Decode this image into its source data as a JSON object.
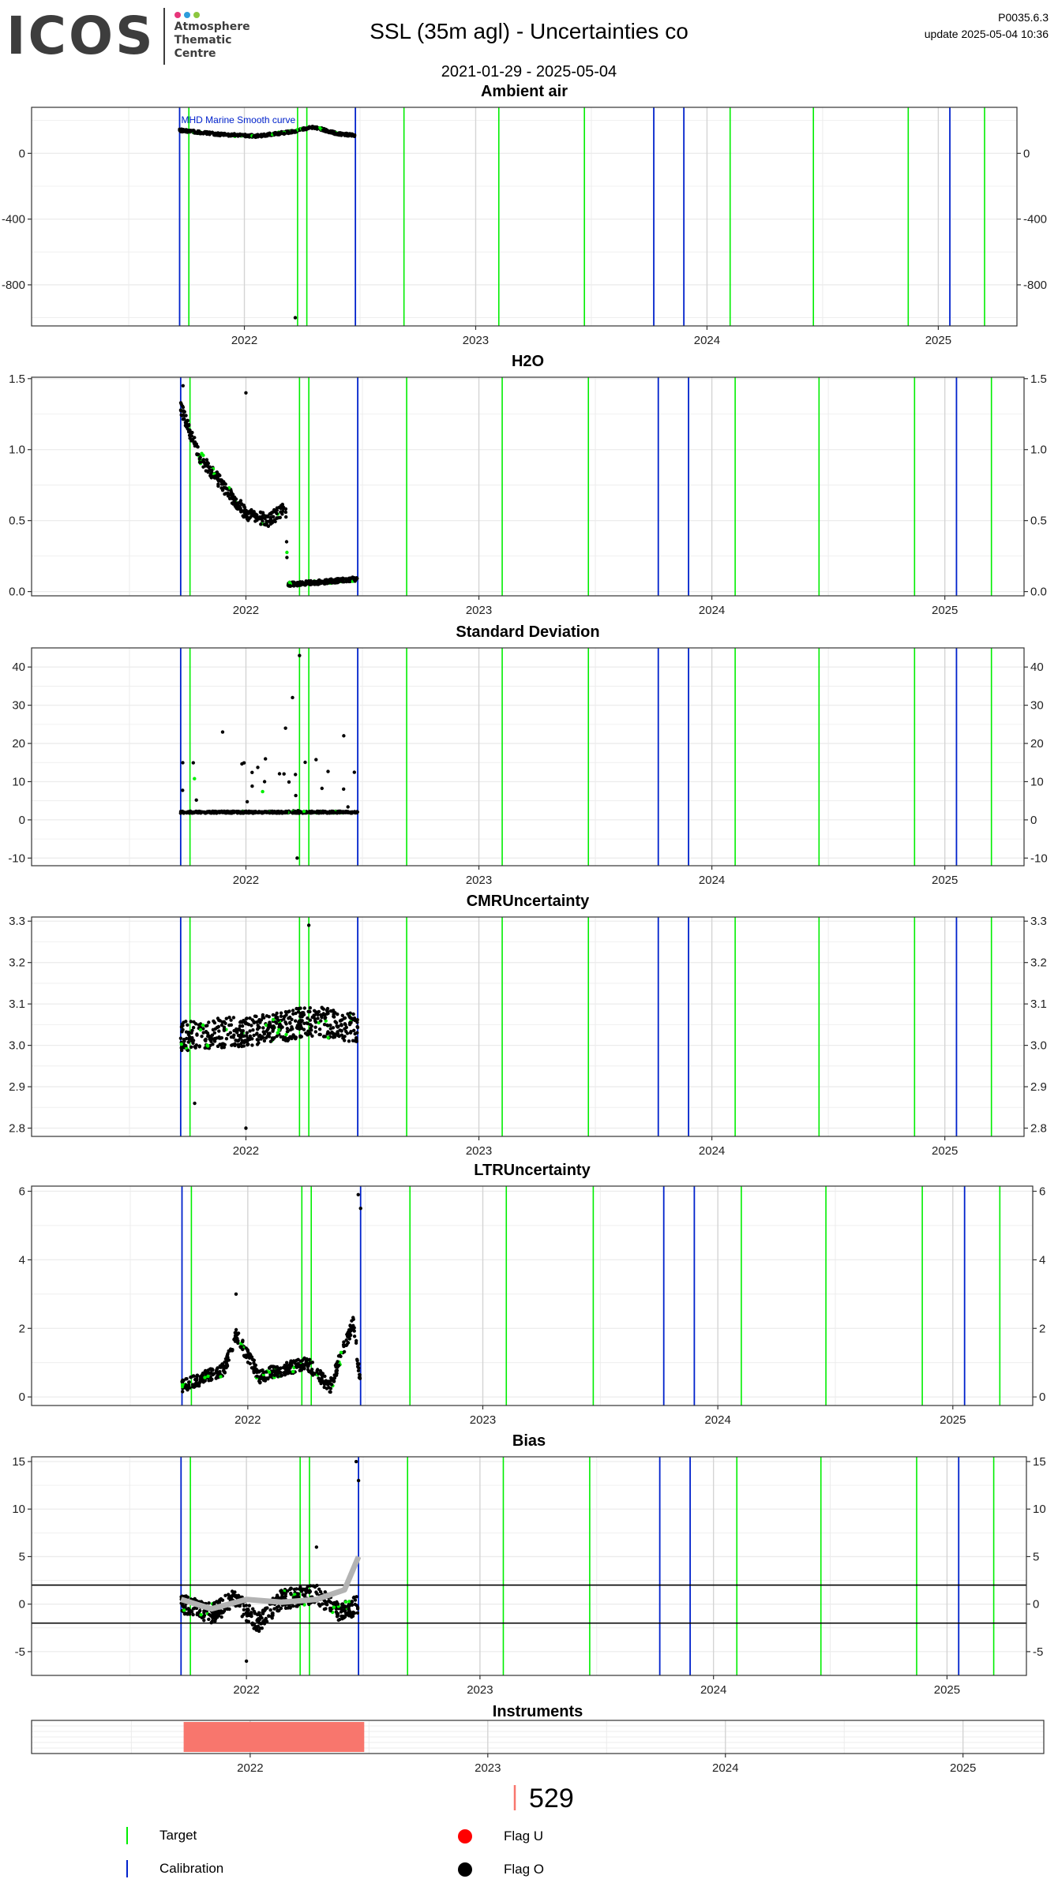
{
  "header": {
    "logo_word": "ICOS",
    "logo_lines": [
      "Atmosphere",
      "Thematic",
      "Centre"
    ],
    "title": "SSL  (35m agl) - Uncertainties co",
    "date_range": "2021-01-29 - 2025-05-04",
    "version": "P0035.6.3",
    "update": "update  2025-05-04 10:36"
  },
  "colors": {
    "target": "#00ee00",
    "calibration": "#0022cc",
    "flag_u": "#ff0000",
    "flag_o": "#000000",
    "instrument": "#f8766d",
    "gridline": "#d9d9d9",
    "smooth_curve": "#b3b3b3"
  },
  "legend": {
    "target": "Target",
    "calibration": "Calibration",
    "flag_u": "Flag U",
    "flag_o": "Flag O"
  },
  "instrument_label": "529",
  "chart_data": [
    {
      "type": "scatter",
      "title": "Ambient air",
      "ylim": [
        -1050,
        280
      ],
      "yticks": [
        0,
        -400,
        -800
      ],
      "xticks": [
        "2022",
        "2023",
        "2024",
        "2025"
      ],
      "xlim": [
        2021.08,
        2025.34
      ],
      "annotation": "MHD Marine Smooth curve",
      "data_range": [
        2021.72,
        2022.48
      ],
      "level_points": [
        [
          2021.72,
          140
        ],
        [
          2021.9,
          115
        ],
        [
          2022.05,
          105
        ],
        [
          2022.2,
          130
        ],
        [
          2022.3,
          160
        ],
        [
          2022.4,
          120
        ],
        [
          2022.48,
          110
        ]
      ],
      "outliers": [
        [
          2022.22,
          -1000
        ]
      ],
      "target_dates": [
        2021.76,
        2022.23,
        2022.27,
        2022.69,
        2023.1,
        2023.47,
        2024.1,
        2024.46,
        2024.87,
        2025.2
      ],
      "calibration_dates": [
        2021.72,
        2022.48,
        2023.77,
        2023.9,
        2025.05
      ],
      "grid": true
    },
    {
      "type": "scatter",
      "title": "H2O",
      "ylim": [
        -0.03,
        1.51
      ],
      "yticks": [
        0.0,
        0.5,
        1.0,
        1.5
      ],
      "xticks": [
        "2022",
        "2023",
        "2024",
        "2025"
      ],
      "xlim": [
        2021.08,
        2025.34
      ],
      "data_range": [
        2021.72,
        2022.48
      ],
      "level_points": [
        [
          2021.72,
          1.3
        ],
        [
          2021.8,
          0.95
        ],
        [
          2021.9,
          0.75
        ],
        [
          2022.0,
          0.55
        ],
        [
          2022.1,
          0.5
        ],
        [
          2022.17,
          0.6
        ],
        [
          2022.18,
          0.05
        ],
        [
          2022.35,
          0.07
        ],
        [
          2022.48,
          0.09
        ]
      ],
      "outliers": [
        [
          2021.73,
          1.45
        ],
        [
          2022.0,
          1.4
        ]
      ],
      "target_dates": [
        2021.76,
        2022.23,
        2022.27,
        2022.69,
        2023.1,
        2023.47,
        2024.1,
        2024.46,
        2024.87,
        2025.2
      ],
      "calibration_dates": [
        2021.72,
        2022.48,
        2023.77,
        2023.9,
        2025.05
      ],
      "grid": true
    },
    {
      "type": "scatter",
      "title": "Standard Deviation",
      "ylim": [
        -12,
        45
      ],
      "yticks": [
        -10,
        0,
        10,
        20,
        30,
        40
      ],
      "xticks": [
        "2022",
        "2023",
        "2024",
        "2025"
      ],
      "xlim": [
        2021.08,
        2025.34
      ],
      "data_range": [
        2021.72,
        2022.48
      ],
      "level_points": [
        [
          2021.72,
          2
        ],
        [
          2022.1,
          2
        ],
        [
          2022.48,
          2
        ]
      ],
      "outliers": [
        [
          2022.23,
          43
        ],
        [
          2022.2,
          32
        ],
        [
          2022.22,
          -10
        ],
        [
          2021.9,
          23
        ],
        [
          2022.17,
          24
        ],
        [
          2022.42,
          22
        ]
      ],
      "target_dates": [
        2021.76,
        2022.23,
        2022.27,
        2022.69,
        2023.1,
        2023.47,
        2024.1,
        2024.46,
        2024.87,
        2025.2
      ],
      "calibration_dates": [
        2021.72,
        2022.48,
        2023.77,
        2023.9,
        2025.05
      ],
      "grid": true
    },
    {
      "type": "scatter",
      "title": "CMRUncertainty",
      "ylim": [
        2.78,
        3.31
      ],
      "yticks": [
        2.8,
        2.9,
        3.0,
        3.1,
        3.2,
        3.3
      ],
      "xticks": [
        "2022",
        "2023",
        "2024",
        "2025"
      ],
      "xlim": [
        2021.08,
        2025.34
      ],
      "data_range": [
        2021.72,
        2022.48
      ],
      "level_points": [
        [
          2021.72,
          3.02
        ],
        [
          2021.9,
          3.03
        ],
        [
          2022.1,
          3.04
        ],
        [
          2022.3,
          3.06
        ],
        [
          2022.48,
          3.04
        ]
      ],
      "outliers": [
        [
          2022.27,
          3.29
        ],
        [
          2022.0,
          2.8
        ],
        [
          2021.78,
          2.86
        ]
      ],
      "target_dates": [
        2021.76,
        2022.23,
        2022.27,
        2022.69,
        2023.1,
        2023.47,
        2024.1,
        2024.46,
        2024.87,
        2025.2
      ],
      "calibration_dates": [
        2021.72,
        2022.48,
        2023.77,
        2023.9,
        2025.05
      ],
      "grid": true
    },
    {
      "type": "scatter",
      "title": "LTRUncertainty",
      "ylim": [
        -0.25,
        6.15
      ],
      "yticks": [
        0,
        2,
        4,
        6
      ],
      "xticks": [
        "2022",
        "2023",
        "2024",
        "2025"
      ],
      "xlim": [
        2021.08,
        2025.34
      ],
      "data_range": [
        2021.72,
        2022.48
      ],
      "level_points": [
        [
          2021.72,
          0.3
        ],
        [
          2021.9,
          0.8
        ],
        [
          2021.95,
          1.8
        ],
        [
          2022.05,
          0.6
        ],
        [
          2022.25,
          1.0
        ],
        [
          2022.35,
          0.3
        ],
        [
          2022.45,
          2.2
        ],
        [
          2022.48,
          0.3
        ]
      ],
      "outliers": [
        [
          2022.47,
          5.9
        ],
        [
          2022.48,
          5.5
        ],
        [
          2021.95,
          3.0
        ]
      ],
      "target_dates": [
        2021.76,
        2022.23,
        2022.27,
        2022.69,
        2023.1,
        2023.47,
        2024.1,
        2024.46,
        2024.87,
        2025.2
      ],
      "calibration_dates": [
        2021.72,
        2022.48,
        2023.77,
        2023.9,
        2025.05
      ],
      "grid": true
    },
    {
      "type": "scatter",
      "title": "Bias",
      "ylim": [
        -7.5,
        15.5
      ],
      "yticks": [
        -5,
        0,
        5,
        10,
        15
      ],
      "xticks": [
        "2022",
        "2023",
        "2024",
        "2025"
      ],
      "xlim": [
        2021.08,
        2025.34
      ],
      "data_range": [
        2021.72,
        2022.48
      ],
      "level_points": [
        [
          2021.72,
          0
        ],
        [
          2021.85,
          -1
        ],
        [
          2021.95,
          0.5
        ],
        [
          2022.05,
          -2
        ],
        [
          2022.15,
          0.5
        ],
        [
          2022.3,
          1
        ],
        [
          2022.4,
          -1
        ],
        [
          2022.48,
          0
        ]
      ],
      "outliers": [
        [
          2022.47,
          15
        ],
        [
          2022.48,
          13
        ],
        [
          2022.0,
          -6
        ],
        [
          2022.3,
          6
        ]
      ],
      "smooth_curve": [
        [
          2021.72,
          0.5
        ],
        [
          2021.85,
          -0.5
        ],
        [
          2022.0,
          0.5
        ],
        [
          2022.15,
          0.2
        ],
        [
          2022.3,
          0.5
        ],
        [
          2022.42,
          1.5
        ],
        [
          2022.48,
          5
        ]
      ],
      "hlines": [
        2,
        -2
      ],
      "target_dates": [
        2021.76,
        2022.23,
        2022.27,
        2022.69,
        2023.1,
        2023.47,
        2024.1,
        2024.46,
        2024.87,
        2025.2
      ],
      "calibration_dates": [
        2021.72,
        2022.48,
        2023.77,
        2023.9,
        2025.05
      ],
      "grid": true
    },
    {
      "type": "bar",
      "title": "Instruments",
      "xticks": [
        "2022",
        "2023",
        "2024",
        "2025"
      ],
      "xlim": [
        2021.08,
        2025.34
      ],
      "instrument_ranges": [
        [
          2021.72,
          2022.48
        ]
      ],
      "grid": true
    }
  ]
}
